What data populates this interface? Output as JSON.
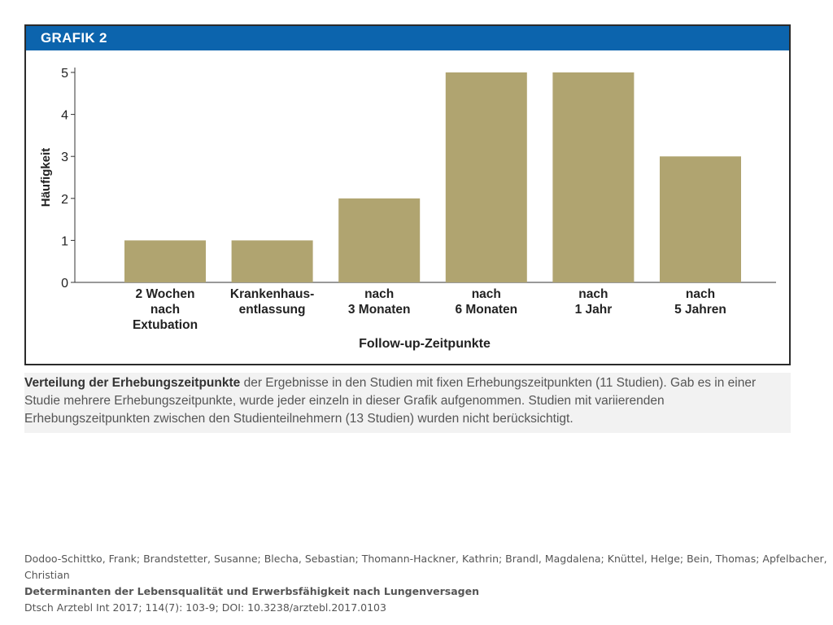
{
  "header": {
    "title": "GRAFIK 2"
  },
  "chart_data": {
    "type": "bar",
    "title": "",
    "xlabel": "Follow-up-Zeitpunkte",
    "ylabel": "Häufigkeit",
    "ylim": [
      0,
      5
    ],
    "yticks": [
      0,
      1,
      2,
      3,
      4,
      5
    ],
    "grid": false,
    "categories": [
      [
        "2 Wochen",
        "nach",
        "Extubation"
      ],
      [
        "Krankenhaus-",
        "entlassung"
      ],
      [
        "nach",
        "3 Monaten"
      ],
      [
        "nach",
        "6 Monaten"
      ],
      [
        "nach",
        "1 Jahr"
      ],
      [
        "nach",
        "5 Jahren"
      ]
    ],
    "values": [
      1,
      1,
      2,
      5,
      5,
      3
    ],
    "bar_color": "#b0a470"
  },
  "caption": {
    "bold": "Verteilung der Erhebungszeitpunkte",
    "text": " der Ergebnisse in den Studien mit fixen Erhebungszeitpunkten (11 Studien). Gab es in einer Studie mehrere Erhebungszeitpunkte, wurde jeder einzeln in dieser Grafik aufgenommen. Studien mit variierenden Erhebungszeitpunkten zwischen den Studienteilnehmern (13 Studien) wurden nicht berücksichtigt."
  },
  "footer": {
    "authors": "Dodoo-Schittko, Frank; Brandstetter, Susanne; Blecha, Sebastian; Thomann-Hackner, Kathrin; Brandl, Magdalena; Knüttel, Helge; Bein, Thomas; Apfelbacher, Christian",
    "title": "Determinanten der Lebensqualität und Erwerbsfähigkeit nach Lungenversagen",
    "citation": "Dtsch Arztebl Int 2017; 114(7): 103-9; DOI: 10.3238/arztebl.2017.0103"
  }
}
